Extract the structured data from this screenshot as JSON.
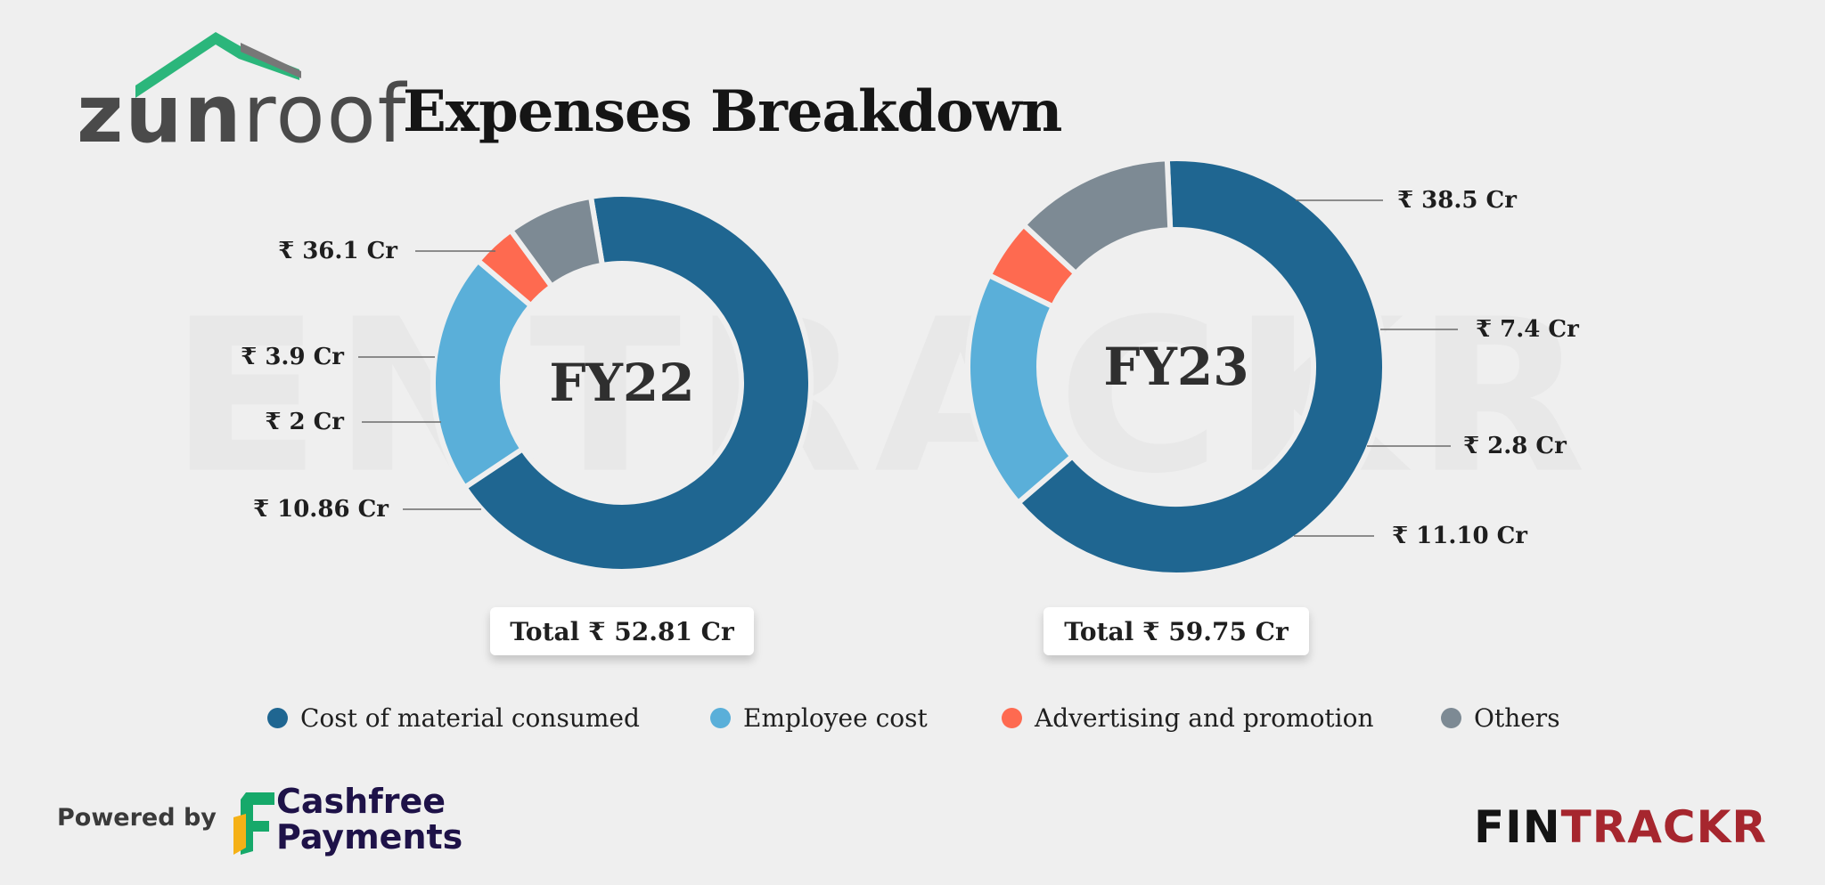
{
  "brand": {
    "name_part1": "zun",
    "name_part2": "roof",
    "accent_color": "#2bb67b"
  },
  "title": "Expenses Breakdown",
  "watermark": "ENTRACKR",
  "colors": {
    "material": "#1f6691",
    "employee": "#5aafd9",
    "advertising": "#fe6a50",
    "others": "#7d8a94"
  },
  "chart_data": [
    {
      "type": "donut",
      "title": "FY22",
      "total_label": "Total ₹ 52.81 Cr",
      "slices": [
        {
          "category": "Cost of material consumed",
          "value": 36.1,
          "label": "₹ 36.1 Cr"
        },
        {
          "category": "Employee cost",
          "value": 10.86,
          "label": "₹ 10.86 Cr"
        },
        {
          "category": "Advertising and promotion",
          "value": 2,
          "label": "₹ 2 Cr"
        },
        {
          "category": "Others",
          "value": 3.9,
          "label": "₹ 3.9 Cr"
        }
      ]
    },
    {
      "type": "donut",
      "title": "FY23",
      "total_label": "Total ₹ 59.75 Cr",
      "slices": [
        {
          "category": "Cost of material consumed",
          "value": 38.5,
          "label": "₹ 38.5 Cr"
        },
        {
          "category": "Employee cost",
          "value": 11.1,
          "label": "₹ 11.10 Cr"
        },
        {
          "category": "Advertising and promotion",
          "value": 2.8,
          "label": "₹ 2.8 Cr"
        },
        {
          "category": "Others",
          "value": 7.4,
          "label": "₹ 7.4 Cr"
        }
      ]
    }
  ],
  "legend": {
    "items": [
      {
        "label": "Cost of material consumed",
        "color": "#1f6691"
      },
      {
        "label": "Employee cost",
        "color": "#5aafd9"
      },
      {
        "label": "Advertising and promotion",
        "color": "#fe6a50"
      },
      {
        "label": "Others",
        "color": "#7d8a94"
      }
    ]
  },
  "footer": {
    "powered_by": "Powered by",
    "sponsor_line1": "Cashfree",
    "sponsor_line2": "Payments",
    "publisher_part1": "FIN",
    "publisher_part2": "TRACKR"
  }
}
